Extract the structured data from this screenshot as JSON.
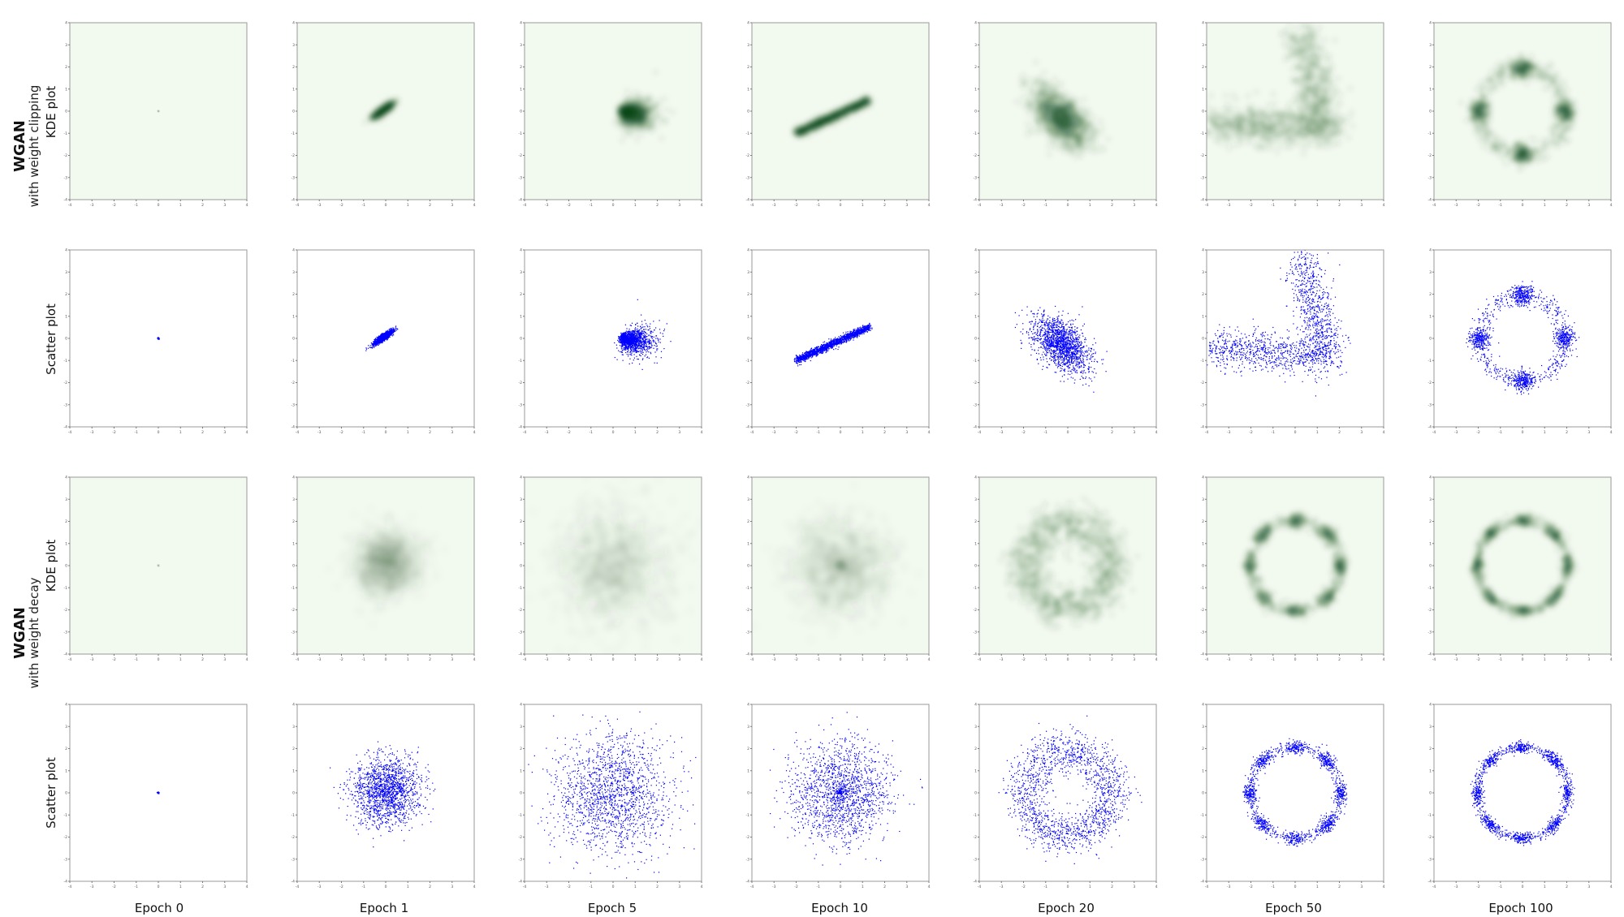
{
  "groups": [
    {
      "title": "WGAN",
      "subtitle": "with weight clipping"
    },
    {
      "title": "WGAN",
      "subtitle": "with weight decay"
    }
  ],
  "row_labels": [
    "KDE plot",
    "Scatter plot",
    "KDE plot",
    "Scatter plot"
  ],
  "columns": [
    "Epoch 0",
    "Epoch 1",
    "Epoch 5",
    "Epoch 10",
    "Epoch 20",
    "Epoch 50",
    "Epoch 100"
  ],
  "colors": {
    "kde_green": "#00441b",
    "kde_background": "#f2f9ef",
    "scatter_blue": "#0000ff",
    "frame": "#9a9a9a"
  },
  "chart_data": {
    "type": "grid of kde and scatter",
    "xlim": [
      -4,
      4
    ],
    "ylim": [
      -4,
      4
    ],
    "ticks": [
      -4,
      -3,
      -2,
      -1,
      0,
      1,
      2,
      3,
      4
    ],
    "panels": {
      "clip": [
        {
          "epoch": 0,
          "shape": "point",
          "center": [
            0,
            0
          ],
          "spread": 0.02,
          "density": "point"
        },
        {
          "epoch": 1,
          "shape": "tilted blob",
          "center": [
            -0.1,
            0.05
          ],
          "length": 0.5,
          "width": 0.12,
          "angle_deg": 35
        },
        {
          "epoch": 5,
          "shape": "fan",
          "center": [
            0.4,
            0.0
          ],
          "spread_x": 1.3,
          "spread_y": 0.8
        },
        {
          "epoch": 10,
          "shape": "diagonal line",
          "from": [
            -2.0,
            -1.0
          ],
          "to": [
            1.3,
            0.5
          ],
          "width": 0.15
        },
        {
          "epoch": 20,
          "shape": "tilted blob",
          "center": [
            -0.3,
            -0.3
          ],
          "length": 1.6,
          "width": 0.9,
          "angle_deg": -45
        },
        {
          "epoch": 50,
          "shape": "V",
          "arm_a": [
            [
              -3.8,
              -0.5
            ],
            [
              1.5,
              -0.8
            ]
          ],
          "arm_b": [
            [
              1.5,
              -0.8
            ],
            [
              0.3,
              3.5
            ]
          ]
        },
        {
          "epoch": 100,
          "shape": "ring",
          "radius": 1.95,
          "modes": 4,
          "thickness": 0.22
        }
      ],
      "decay": [
        {
          "epoch": 0,
          "shape": "point",
          "center": [
            0,
            0
          ],
          "spread": 0.02
        },
        {
          "epoch": 1,
          "shape": "gaussian",
          "center": [
            0.05,
            0.1
          ],
          "spread": 0.75
        },
        {
          "epoch": 5,
          "shape": "gaussian",
          "center": [
            0,
            0
          ],
          "spread": 1.3
        },
        {
          "epoch": 10,
          "shape": "broad ring",
          "radius": 1.3,
          "spread": 0.8
        },
        {
          "epoch": 20,
          "shape": "ring",
          "radius": 1.95,
          "thickness": 0.45
        },
        {
          "epoch": 50,
          "shape": "ring",
          "radius": 2.05,
          "modes": 8,
          "thickness": 0.15
        },
        {
          "epoch": 100,
          "shape": "ring",
          "radius": 2.05,
          "modes": 8,
          "thickness": 0.12
        }
      ]
    }
  }
}
